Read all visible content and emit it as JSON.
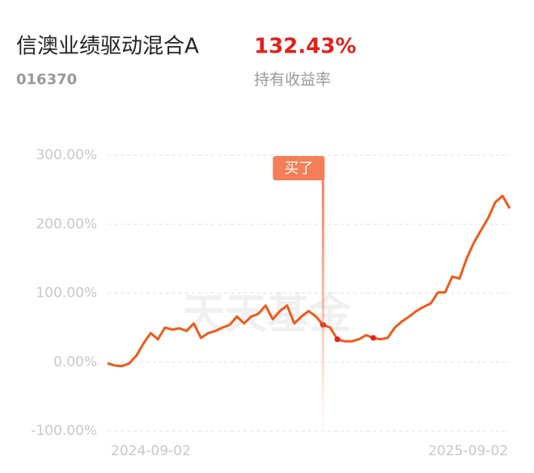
{
  "header": {
    "fund_name": "信澳业绩驱动混合A",
    "fund_code": "016370",
    "return_value": "132.43%",
    "return_label": "持有收益率"
  },
  "chart_data": {
    "type": "line",
    "watermark": "天天基金",
    "categories": [
      "2024-09-02",
      null,
      null,
      null,
      null,
      null,
      null,
      null,
      null,
      null,
      null,
      null,
      null,
      null,
      null,
      null,
      null,
      null,
      null,
      null,
      null,
      null,
      null,
      null,
      null,
      null,
      null,
      null,
      null,
      null,
      null,
      null,
      null,
      null,
      null,
      null,
      null,
      null,
      null,
      null,
      null,
      null,
      null,
      null,
      null,
      null,
      null,
      null,
      null,
      null,
      null,
      null,
      null,
      null,
      null,
      null,
      "2025-09-02"
    ],
    "series": [
      {
        "color": "#f05a1a",
        "values": [
          -2,
          -5,
          -6,
          -2,
          9,
          27,
          42,
          33,
          50,
          47,
          49,
          45,
          56,
          35,
          42,
          45,
          50,
          54,
          66,
          56,
          66,
          70,
          82,
          62,
          74,
          82,
          56,
          66,
          74,
          66,
          54,
          50,
          33,
          30,
          30,
          33,
          39,
          35,
          33,
          35,
          50,
          59,
          66,
          74,
          80,
          85,
          101,
          101,
          124,
          121,
          150,
          173,
          191,
          209,
          232,
          241,
          223
        ]
      }
    ],
    "annotation": {
      "text": "买了",
      "index": 30
    },
    "markers": [
      30,
      32,
      37
    ],
    "ylim": [
      -100,
      300
    ],
    "yticks": [
      {
        "value": -100,
        "label": "-100.00%"
      },
      {
        "value": 0,
        "label": "0.00%"
      },
      {
        "value": 100,
        "label": "100.00%"
      },
      {
        "value": 200,
        "label": "200.00%"
      },
      {
        "value": 300,
        "label": "300.00%"
      }
    ],
    "grid": true
  }
}
